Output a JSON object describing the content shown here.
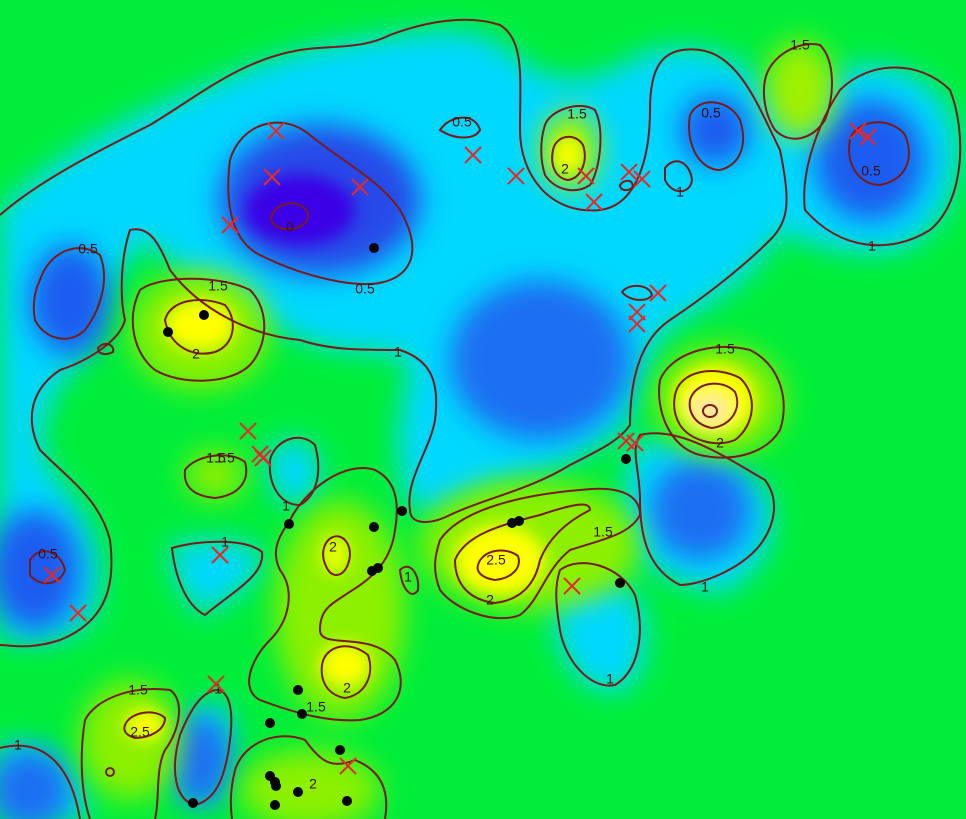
{
  "chart_data": {
    "type": "heatmap",
    "subtype": "contour-map",
    "title": "",
    "xlabel": "",
    "ylabel": "",
    "grid": false,
    "legend": "none",
    "colormap": {
      "0": "#3a00e6",
      "0.5": "#1e5cf0",
      "1": "#00d8ff",
      "1.5": "#8cf000",
      "2": "#ffff00",
      "2.5": "#ffe070",
      "3": "#ffffff"
    },
    "background_color": "#00ee3a",
    "contour_color": "#7a1a1a",
    "contour_levels": [
      0,
      0.5,
      1,
      1.5,
      2,
      2.5
    ],
    "contour_labels": [
      {
        "text": "0"
      },
      {
        "text": "0.5"
      },
      {
        "text": "0.5"
      },
      {
        "text": "0.5"
      },
      {
        "text": "0.5"
      },
      {
        "text": "0.5"
      },
      {
        "text": "0.5"
      },
      {
        "text": "1"
      },
      {
        "text": "1"
      },
      {
        "text": "1"
      },
      {
        "text": "1"
      },
      {
        "text": "1"
      },
      {
        "text": "1"
      },
      {
        "text": "1"
      },
      {
        "text": "1"
      },
      {
        "text": "1"
      },
      {
        "text": "1"
      },
      {
        "text": "1.5"
      },
      {
        "text": "1.5"
      },
      {
        "text": "1.5"
      },
      {
        "text": "1.5"
      },
      {
        "text": "1.5"
      },
      {
        "text": "1.5"
      },
      {
        "text": "1.5"
      },
      {
        "text": "1.5"
      },
      {
        "text": "1.5"
      },
      {
        "text": "2"
      },
      {
        "text": "2"
      },
      {
        "text": "2"
      },
      {
        "text": "2"
      },
      {
        "text": "2"
      },
      {
        "text": "2"
      },
      {
        "text": "2"
      },
      {
        "text": "2.5"
      },
      {
        "text": "2.5"
      }
    ],
    "markers": {
      "cross_color": "#e82828",
      "dot_color": "#000000",
      "crosses_count": 32,
      "dots_count": 31
    }
  }
}
